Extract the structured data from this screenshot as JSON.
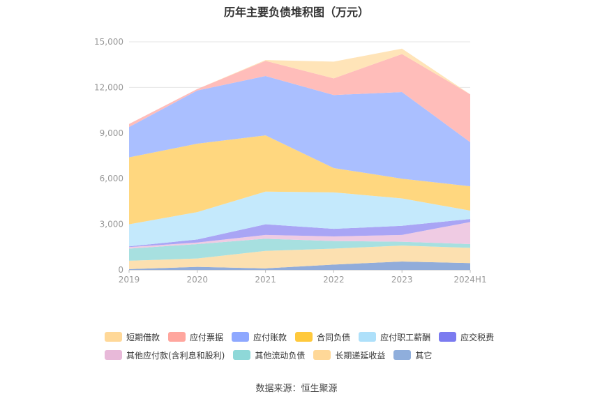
{
  "title": "历年主要负债堆积图（万元）",
  "source": "数据来源：恒生聚源",
  "chart_data": {
    "type": "area",
    "stacked": true,
    "categories": [
      "2019",
      "2020",
      "2021",
      "2022",
      "2023",
      "2024H1"
    ],
    "ylim": [
      0,
      15000
    ],
    "yticks": [
      "0",
      "3,000",
      "6,000",
      "9,000",
      "12,000",
      "15,000"
    ],
    "ytick_values": [
      0,
      3000,
      6000,
      9000,
      12000,
      15000
    ],
    "grid": true,
    "legend_position": "bottom",
    "series": [
      {
        "name": "其它",
        "color": "#91ACDA",
        "values": [
          50,
          200,
          100,
          350,
          550,
          450
        ]
      },
      {
        "name": "长期递延收益",
        "color": "#FCE0B0",
        "values": [
          550,
          550,
          1150,
          1050,
          1050,
          1000
        ]
      },
      {
        "name": "其他流动负债",
        "color": "#A7E0E0",
        "values": [
          800,
          950,
          800,
          500,
          250,
          250
        ]
      },
      {
        "name": "其他应付款(含利息和股利)",
        "color": "#EFCBE3",
        "values": [
          100,
          100,
          250,
          300,
          450,
          1450
        ]
      },
      {
        "name": "应交税费",
        "color": "#A9A5F5",
        "values": [
          50,
          200,
          700,
          500,
          600,
          200
        ]
      },
      {
        "name": "应付职工薪酬",
        "color": "#C4E9FC",
        "values": [
          1450,
          1800,
          2150,
          2400,
          1800,
          550
        ]
      },
      {
        "name": "合同负债",
        "color": "#FFD77F",
        "values": [
          4400,
          4500,
          3700,
          1600,
          1300,
          1600
        ]
      },
      {
        "name": "应付账款",
        "color": "#AABFFF",
        "values": [
          2000,
          3500,
          3900,
          4800,
          5700,
          2900
        ]
      },
      {
        "name": "应付票据",
        "color": "#FFBDBA",
        "values": [
          200,
          100,
          1000,
          1100,
          2500,
          3150
        ]
      },
      {
        "name": "短期借款",
        "color": "#FFE4B8",
        "values": [
          0,
          0,
          50,
          1100,
          350,
          0
        ]
      }
    ],
    "legend": [
      {
        "name": "短期借款",
        "color": "#FFD898"
      },
      {
        "name": "应付票据",
        "color": "#FFA69E"
      },
      {
        "name": "应付账款",
        "color": "#8EA8FF"
      },
      {
        "name": "合同负债",
        "color": "#FFC93C"
      },
      {
        "name": "应付职工薪酬",
        "color": "#AEE0FA"
      },
      {
        "name": "应交税费",
        "color": "#7B7BF0"
      },
      {
        "name": "其他应付款(含利息和股利)",
        "color": "#E8B9D9"
      },
      {
        "name": "其他流动负债",
        "color": "#8ED8D8"
      },
      {
        "name": "长期递延收益",
        "color": "#FFD898"
      },
      {
        "name": "其它",
        "color": "#8FAEDC"
      }
    ]
  }
}
